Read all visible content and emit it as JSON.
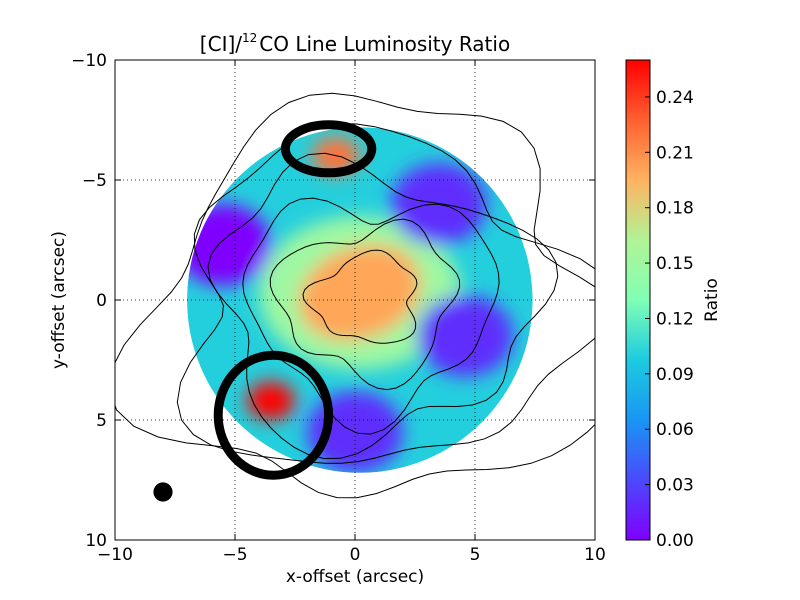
{
  "chart_data": {
    "type": "heatmap",
    "title": {
      "prefix": "[CI]/",
      "sup": "12",
      "suffix": "CO Line Luminosity Ratio"
    },
    "xlabel": "x-offset (arcsec)",
    "ylabel": "y-offset (arcsec)",
    "xlim": [
      -10,
      10
    ],
    "ylim": [
      10,
      -10
    ],
    "y_inverted": true,
    "xticks": [
      -10,
      -5,
      0,
      5,
      10
    ],
    "yticks": [
      -10,
      -5,
      0,
      5,
      10
    ],
    "xtick_labels": [
      "−10",
      "−5",
      "0",
      "5",
      "10"
    ],
    "ytick_labels": [
      "−10",
      "−5",
      "0",
      "5",
      "10"
    ],
    "grid": "dotted",
    "colormap": "rainbow",
    "colorbar": {
      "label": "Ratio",
      "range": [
        0.0,
        0.26
      ],
      "ticks": [
        0.0,
        0.03,
        0.06,
        0.09,
        0.12,
        0.15,
        0.18,
        0.21,
        0.24
      ],
      "tick_labels": [
        "0.00",
        "0.03",
        "0.06",
        "0.09",
        "0.12",
        "0.15",
        "0.18",
        "0.21",
        "0.24"
      ]
    },
    "map": {
      "center": [
        0.2,
        0.0
      ],
      "radius": 7.2,
      "peak": {
        "x": 0.2,
        "y": -0.3,
        "value": 0.2
      },
      "high_regions": [
        {
          "x": -3.5,
          "y": 4.2,
          "value": 0.26
        },
        {
          "x": -0.8,
          "y": -6.0,
          "value": 0.22
        }
      ],
      "low_regions": [
        {
          "x": -5.5,
          "y": -2.3,
          "value": 0.0
        },
        {
          "x": 3.5,
          "y": -4.0,
          "value": 0.02
        },
        {
          "x": 4.6,
          "y": 1.5,
          "value": 0.02
        },
        {
          "x": 0.0,
          "y": 5.5,
          "value": 0.02
        }
      ]
    },
    "contour_levels": 6,
    "circles": [
      {
        "x": -1.1,
        "y": -6.3,
        "rx": 1.8,
        "ry": 1.0
      },
      {
        "x": -3.4,
        "y": 4.8,
        "rx": 2.3,
        "ry": 2.5
      }
    ],
    "beam": {
      "x": -8.0,
      "y": 8.0,
      "diameter": 0.8
    }
  }
}
